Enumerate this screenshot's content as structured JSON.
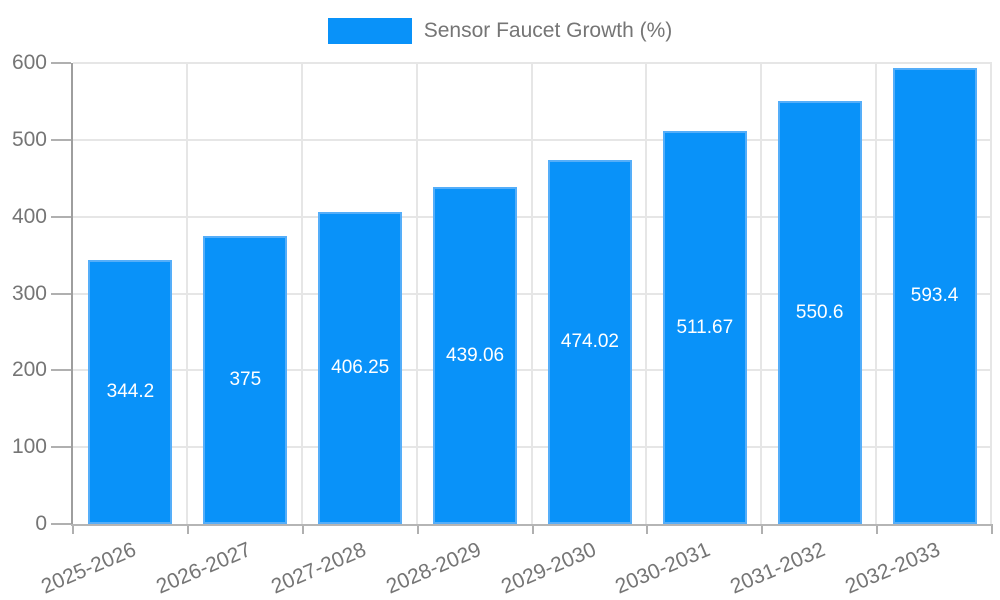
{
  "legend": {
    "label": "Sensor Faucet Growth (%)"
  },
  "colors": {
    "bar_fill": "#0992f9",
    "bar_stroke": "#55aef9",
    "grid": "#e6e6e6",
    "y_axis_line": "#9e9e9e",
    "x_axis_line": "#b5b5b5",
    "tick": "#b0b0b0",
    "axis_text": "#757575",
    "value_label": "#ffffff",
    "background": "#ffffff"
  },
  "chart_data": {
    "type": "bar",
    "title": "",
    "xlabel": "",
    "ylabel": "",
    "series_name": "Sensor Faucet Growth (%)",
    "categories": [
      "2025-2026",
      "2026-2027",
      "2027-2028",
      "2028-2029",
      "2029-2030",
      "2030-2031",
      "2031-2032",
      "2032-2033"
    ],
    "values": [
      344.2,
      375,
      406.25,
      439.06,
      474.02,
      511.67,
      550.6,
      593.4
    ],
    "ylim": [
      0,
      600
    ],
    "yticks": [
      0,
      100,
      200,
      300,
      400,
      500,
      600
    ],
    "grid": true,
    "legend_position": "top-center",
    "value_label_position": "inside-center",
    "xtick_rotation_deg": -23
  }
}
